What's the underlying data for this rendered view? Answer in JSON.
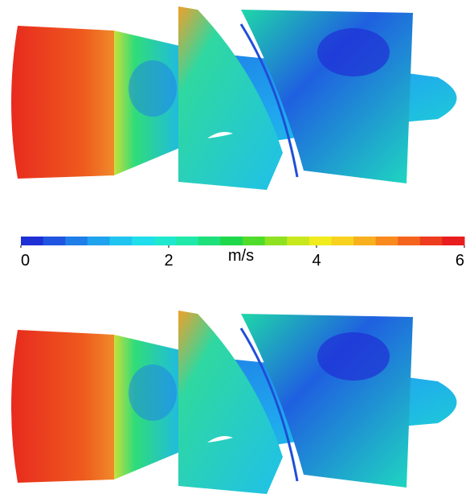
{
  "colorbar": {
    "label": "m/s",
    "range": [
      0,
      6
    ],
    "ticks": [
      0,
      2,
      4,
      6
    ],
    "colors": [
      "#1f2fd6",
      "#1f55e0",
      "#1f7ee8",
      "#1fa3ee",
      "#1fc4f0",
      "#1fddea",
      "#1fe8cf",
      "#1fe8a8",
      "#1ee07a",
      "#1fd84a",
      "#4fdc2a",
      "#8ee222",
      "#c8e81e",
      "#f0ec1e",
      "#f8d21e",
      "#f8b01e",
      "#f88a1e",
      "#f4641e",
      "#ee3c1e",
      "#e81e1e"
    ]
  }
}
